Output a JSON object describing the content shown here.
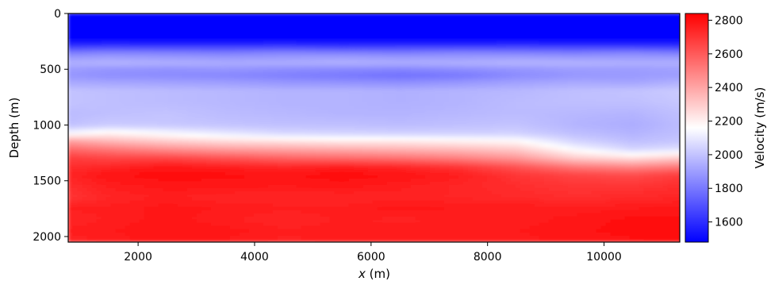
{
  "chart_data": {
    "type": "heatmap",
    "title": "",
    "xlabel_italic": "x",
    "xlabel_unit": "(m)",
    "ylabel": "Depth (m)",
    "xlim": [
      800,
      11300
    ],
    "ylim": [
      2050,
      0
    ],
    "x_ticks": [
      2000,
      4000,
      6000,
      8000,
      10000
    ],
    "x_tick_labels": [
      "2000",
      "4000",
      "6000",
      "8000",
      "10000"
    ],
    "y_ticks": [
      0,
      500,
      1000,
      1500,
      2000
    ],
    "y_tick_labels": [
      "0",
      "500",
      "1000",
      "1500",
      "2000"
    ],
    "colorbar": {
      "label": "Velocity (m/s)",
      "range": [
        1480,
        2840
      ],
      "colormap": "bwr",
      "ticks": [
        1600,
        1800,
        2000,
        2200,
        2400,
        2600,
        2800
      ],
      "tick_labels": [
        "1600",
        "1800",
        "2000",
        "2200",
        "2400",
        "2600",
        "2800"
      ]
    },
    "colors": {
      "low": "#0000ff",
      "mid": "#ffffff",
      "high": "#ff0000"
    },
    "depth_samples": [
      0,
      150,
      250,
      300,
      350,
      400,
      450,
      500,
      560,
      620,
      700,
      800,
      900,
      1000,
      1080,
      1150,
      1220,
      1300,
      1380,
      1450,
      1550,
      1650,
      1750,
      1850,
      1950,
      2050
    ],
    "x_samples": [
      800,
      1500,
      2500,
      3500,
      4500,
      5500,
      6500,
      7500,
      8500,
      9500,
      10500,
      11300
    ],
    "velocity_grid": [
      [
        1480,
        1480,
        1480,
        1480,
        1480,
        1480,
        1480,
        1480,
        1480,
        1480,
        1480,
        1480
      ],
      [
        1480,
        1480,
        1480,
        1480,
        1480,
        1480,
        1480,
        1480,
        1480,
        1480,
        1480,
        1480
      ],
      [
        1500,
        1500,
        1500,
        1500,
        1500,
        1500,
        1500,
        1500,
        1500,
        1500,
        1500,
        1500
      ],
      [
        1640,
        1660,
        1650,
        1650,
        1660,
        1640,
        1650,
        1650,
        1660,
        1650,
        1650,
        1640
      ],
      [
        1800,
        1820,
        1810,
        1800,
        1820,
        1810,
        1800,
        1820,
        1810,
        1800,
        1820,
        1800
      ],
      [
        1900,
        1910,
        1900,
        1890,
        1900,
        1910,
        1900,
        1900,
        1910,
        1900,
        1900,
        1900
      ],
      [
        1950,
        1960,
        1950,
        1940,
        1940,
        1950,
        1940,
        1950,
        1960,
        1960,
        1950,
        1950
      ],
      [
        1900,
        1880,
        1870,
        1880,
        1860,
        1850,
        1840,
        1860,
        1880,
        1900,
        1900,
        1910
      ],
      [
        1880,
        1860,
        1850,
        1840,
        1820,
        1800,
        1780,
        1800,
        1850,
        1880,
        1890,
        1900
      ],
      [
        1930,
        1920,
        1910,
        1900,
        1880,
        1870,
        1860,
        1880,
        1910,
        1930,
        1920,
        1950
      ],
      [
        2000,
        1990,
        1980,
        1970,
        1960,
        1960,
        1950,
        1960,
        1970,
        1990,
        2000,
        2020
      ],
      [
        2000,
        1990,
        1980,
        1970,
        1960,
        1960,
        1950,
        1960,
        1980,
        1990,
        1990,
        2010
      ],
      [
        1980,
        1990,
        2000,
        1980,
        1970,
        1960,
        1960,
        1970,
        1980,
        1970,
        1960,
        1990
      ],
      [
        1990,
        2020,
        2010,
        2000,
        1990,
        1990,
        1980,
        1990,
        2000,
        1960,
        1940,
        1980
      ],
      [
        2150,
        2200,
        2150,
        2100,
        2060,
        2050,
        2040,
        2040,
        2040,
        1990,
        1960,
        1990
      ],
      [
        2420,
        2360,
        2300,
        2260,
        2240,
        2220,
        2220,
        2200,
        2180,
        2050,
        1990,
        2010
      ],
      [
        2560,
        2520,
        2460,
        2420,
        2400,
        2380,
        2360,
        2340,
        2300,
        2150,
        2050,
        2080
      ],
      [
        2680,
        2660,
        2660,
        2620,
        2580,
        2560,
        2540,
        2500,
        2440,
        2300,
        2250,
        2300
      ],
      [
        2720,
        2740,
        2780,
        2760,
        2740,
        2760,
        2740,
        2700,
        2620,
        2520,
        2480,
        2520
      ],
      [
        2740,
        2790,
        2810,
        2800,
        2790,
        2810,
        2790,
        2760,
        2700,
        2660,
        2640,
        2680
      ],
      [
        2720,
        2760,
        2780,
        2780,
        2770,
        2780,
        2760,
        2740,
        2720,
        2700,
        2700,
        2720
      ],
      [
        2700,
        2740,
        2760,
        2740,
        2740,
        2740,
        2750,
        2740,
        2730,
        2720,
        2730,
        2740
      ],
      [
        2760,
        2760,
        2780,
        2770,
        2760,
        2760,
        2780,
        2770,
        2770,
        2760,
        2770,
        2780
      ],
      [
        2740,
        2760,
        2780,
        2760,
        2740,
        2760,
        2750,
        2760,
        2760,
        2780,
        2800,
        2800
      ],
      [
        2760,
        2770,
        2790,
        2780,
        2760,
        2760,
        2770,
        2770,
        2770,
        2790,
        2800,
        2810
      ],
      [
        2740,
        2760,
        2780,
        2770,
        2750,
        2760,
        2760,
        2760,
        2760,
        2780,
        2790,
        2800
      ]
    ]
  }
}
